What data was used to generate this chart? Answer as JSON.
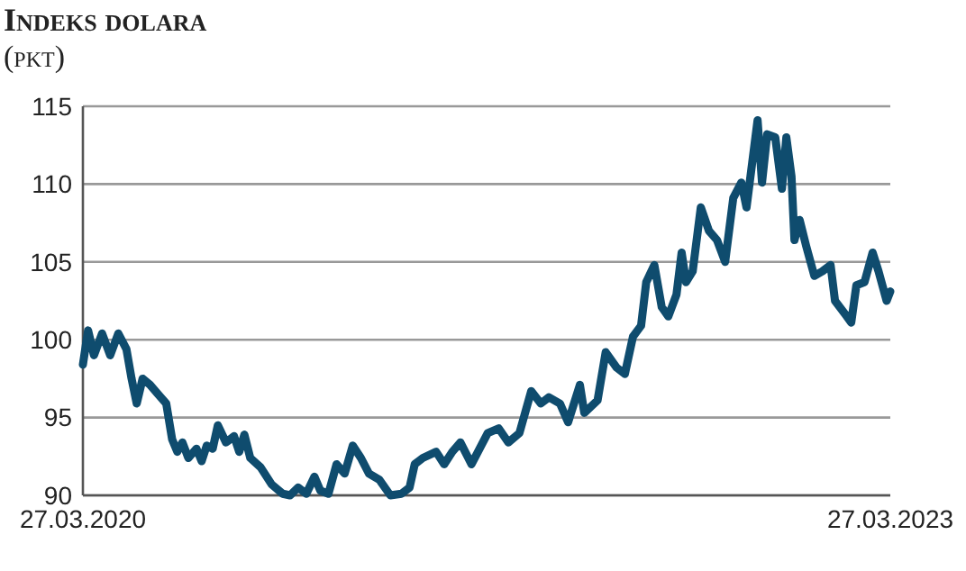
{
  "chart_data": {
    "type": "line",
    "title": "Indeks dolara",
    "subtitle": "(pkt)",
    "xlim": [
      "2020-03-27",
      "2023-03-27"
    ],
    "xticks": [
      {
        "value": "2020-03-27",
        "label": "27.03.2020"
      },
      {
        "value": "2023-03-27",
        "label": "27.03.2023"
      }
    ],
    "ylim": [
      90,
      115
    ],
    "yticks": [
      90,
      95,
      100,
      105,
      110,
      115
    ],
    "grid": "y",
    "marker": "none",
    "line_style": "solid",
    "x": [
      "2020-03-27",
      "2020-04-03",
      "2020-04-11",
      "2020-04-22",
      "2020-05-03",
      "2020-05-14",
      "2020-05-25",
      "2020-06-01",
      "2020-06-08",
      "2020-06-16",
      "2020-06-26",
      "2020-07-07",
      "2020-07-18",
      "2020-07-26",
      "2020-08-02",
      "2020-08-09",
      "2020-08-17",
      "2020-08-28",
      "2020-09-04",
      "2020-09-11",
      "2020-09-19",
      "2020-09-26",
      "2020-10-07",
      "2020-10-18",
      "2020-10-25",
      "2020-11-01",
      "2020-11-09",
      "2020-11-23",
      "2020-12-08",
      "2020-12-23",
      "2021-01-02",
      "2021-01-13",
      "2021-01-24",
      "2021-02-04",
      "2021-02-12",
      "2021-02-23",
      "2021-03-06",
      "2021-03-17",
      "2021-03-28",
      "2021-04-08",
      "2021-04-19",
      "2021-05-03",
      "2021-05-18",
      "2021-06-02",
      "2021-06-13",
      "2021-06-20",
      "2021-07-01",
      "2021-07-19",
      "2021-07-30",
      "2021-08-10",
      "2021-08-21",
      "2021-09-05",
      "2021-09-27",
      "2021-10-12",
      "2021-10-25",
      "2021-11-09",
      "2021-11-25",
      "2021-12-08",
      "2021-12-19",
      "2022-01-03",
      "2022-01-14",
      "2022-01-30",
      "2022-02-05",
      "2022-02-23",
      "2022-03-06",
      "2022-03-21",
      "2022-04-01",
      "2022-04-12",
      "2022-04-23",
      "2022-04-30",
      "2022-05-11",
      "2022-05-21",
      "2022-05-30",
      "2022-06-10",
      "2022-06-17",
      "2022-06-23",
      "2022-07-02",
      "2022-07-13",
      "2022-07-24",
      "2022-08-04",
      "2022-08-15",
      "2022-08-26",
      "2022-09-06",
      "2022-09-13",
      "2022-09-28",
      "2022-10-04",
      "2022-10-11",
      "2022-10-22",
      "2022-10-31",
      "2022-11-06",
      "2022-11-13",
      "2022-11-17",
      "2022-11-24",
      "2022-12-03",
      "2022-12-14",
      "2022-12-25",
      "2023-01-05",
      "2023-01-11",
      "2023-01-27",
      "2023-02-02",
      "2023-02-09",
      "2023-02-20",
      "2023-03-03",
      "2023-03-11",
      "2023-03-22",
      "2023-03-27"
    ],
    "series": [
      {
        "color": "#0f4c6e",
        "values": [
          98.4,
          100.6,
          99.0,
          100.4,
          99.0,
          100.4,
          99.4,
          97.5,
          95.9,
          97.5,
          97.1,
          96.5,
          95.9,
          93.6,
          92.8,
          93.4,
          92.4,
          93.0,
          92.2,
          93.2,
          93.0,
          94.5,
          93.4,
          93.8,
          92.8,
          93.9,
          92.4,
          91.8,
          90.7,
          90.1,
          90.0,
          90.5,
          90.1,
          91.2,
          90.3,
          90.1,
          92.0,
          91.4,
          93.2,
          92.4,
          91.4,
          91.0,
          90.0,
          90.1,
          90.5,
          92.0,
          92.4,
          92.8,
          92.0,
          92.8,
          93.4,
          92.0,
          94.0,
          94.3,
          93.4,
          94.0,
          96.7,
          95.9,
          96.3,
          95.9,
          94.7,
          97.1,
          95.3,
          96.1,
          99.2,
          98.2,
          97.8,
          100.2,
          100.9,
          103.7,
          104.8,
          102.1,
          101.5,
          102.9,
          105.6,
          103.7,
          104.4,
          108.5,
          107.0,
          106.4,
          105.0,
          109.1,
          110.1,
          108.5,
          114.1,
          110.1,
          113.2,
          113.0,
          109.7,
          113.0,
          110.5,
          106.4,
          107.7,
          106.0,
          104.1,
          104.4,
          104.8,
          102.5,
          101.5,
          101.1,
          103.5,
          103.7,
          105.6,
          104.4,
          102.5,
          103.1
        ]
      }
    ]
  }
}
